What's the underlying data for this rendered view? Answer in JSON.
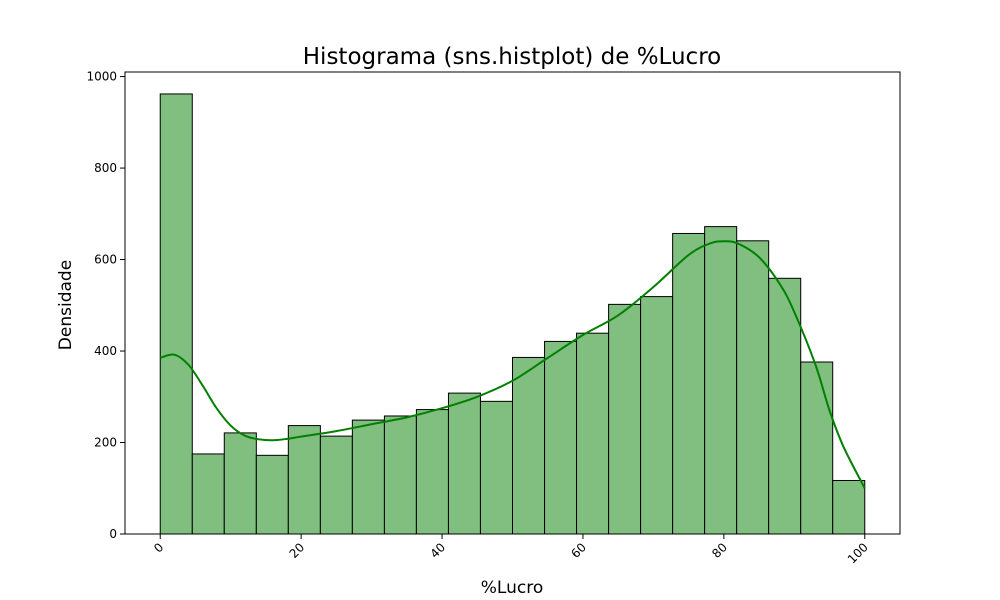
{
  "chart_data": {
    "type": "bar",
    "title": "Histograma (sns.histplot) de %Lucro",
    "xlabel": "%Lucro",
    "ylabel": "Densidade",
    "xlim": [
      -5,
      105
    ],
    "ylim": [
      0,
      1010
    ],
    "xticks": [
      0,
      20,
      40,
      60,
      80,
      100
    ],
    "yticks": [
      0,
      200,
      400,
      600,
      800,
      1000
    ],
    "xtick_rotation": 45,
    "grid": false,
    "legend": "none",
    "bar_color": "#80bf80",
    "bar_edge_color": "#000000",
    "kde_color": "#008000",
    "bin_edges": [
      0,
      4.55,
      9.09,
      13.64,
      18.18,
      22.73,
      27.27,
      31.82,
      36.36,
      40.91,
      45.45,
      50,
      54.55,
      59.09,
      63.64,
      68.18,
      72.73,
      77.27,
      81.82,
      86.36,
      90.91,
      95.45,
      100
    ],
    "values": [
      962,
      175,
      221,
      172,
      237,
      214,
      249,
      258,
      272,
      308,
      290,
      386,
      421,
      439,
      502,
      519,
      657,
      672,
      641,
      559,
      376,
      117
    ],
    "kde": {
      "x": [
        0,
        2,
        4,
        6,
        8,
        10,
        12,
        14,
        16,
        18,
        20,
        25,
        30,
        35,
        40,
        45,
        50,
        55,
        60,
        65,
        70,
        75,
        78,
        80,
        82,
        85,
        88,
        90,
        93,
        95,
        97,
        100
      ],
      "y": [
        385,
        392,
        370,
        325,
        275,
        237,
        215,
        207,
        205,
        208,
        213,
        225,
        240,
        255,
        275,
        300,
        335,
        385,
        435,
        478,
        540,
        610,
        635,
        640,
        635,
        605,
        545,
        485,
        370,
        270,
        190,
        100
      ]
    }
  }
}
